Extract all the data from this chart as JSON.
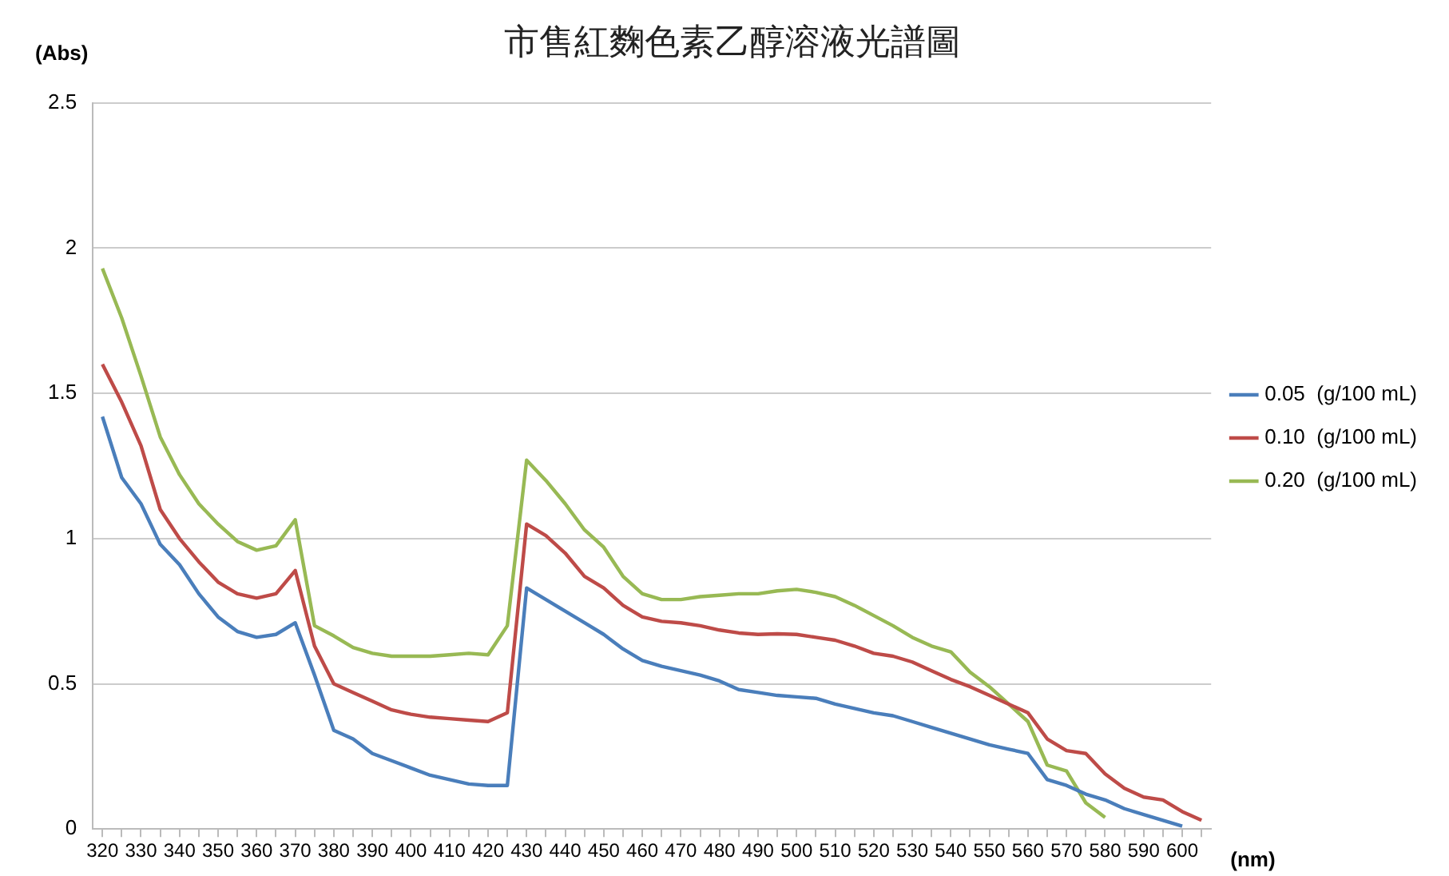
{
  "chart_data": {
    "type": "line",
    "title": "市售紅麴色素乙醇溶液光譜圖",
    "xlabel": "(nm)",
    "ylabel": "(Abs)",
    "categories": [
      "320",
      null,
      "330",
      null,
      "340",
      null,
      "350",
      null,
      "360",
      null,
      "370",
      null,
      "380",
      null,
      "390",
      null,
      "400",
      null,
      "410",
      null,
      "420",
      null,
      "430",
      null,
      "440",
      null,
      "450",
      null,
      "460",
      null,
      "470",
      null,
      "480",
      null,
      "490",
      null,
      "500",
      null,
      "510",
      null,
      "520",
      null,
      "530",
      null,
      "540",
      null,
      "550",
      null,
      "560",
      null,
      "570",
      null,
      "580",
      null,
      "590",
      null,
      "600",
      null
    ],
    "ylim": [
      0,
      2.5
    ],
    "yticks": [
      0,
      0.5,
      1,
      1.5,
      2,
      2.5
    ],
    "grid": "y",
    "legend": "right",
    "marker": "none",
    "line_style": "solid",
    "series": [
      {
        "name": "0.05  (g/100 mL)",
        "color": "#4a7ebb",
        "values": [
          1.42,
          1.21,
          1.12,
          0.98,
          0.91,
          0.81,
          0.73,
          0.68,
          0.66,
          0.67,
          0.71,
          0.53,
          0.34,
          0.31,
          0.26,
          0.235,
          0.21,
          0.185,
          0.17,
          0.155,
          0.15,
          0.15,
          0.83,
          0.79,
          0.75,
          0.71,
          0.67,
          0.62,
          0.58,
          0.56,
          0.545,
          0.53,
          0.51,
          0.48,
          0.47,
          0.46,
          0.455,
          0.45,
          0.43,
          0.415,
          0.4,
          0.39,
          0.37,
          0.35,
          0.33,
          0.31,
          0.29,
          0.275,
          0.26,
          0.17,
          0.15,
          0.12,
          0.1,
          0.07,
          0.05,
          0.03,
          0.01,
          null
        ]
      },
      {
        "name": "0.10  (g/100 mL)",
        "color": "#be4b48",
        "values": [
          1.6,
          1.47,
          1.32,
          1.1,
          1.0,
          0.92,
          0.85,
          0.81,
          0.795,
          0.81,
          0.89,
          0.63,
          0.5,
          0.47,
          0.44,
          0.41,
          0.395,
          0.385,
          0.38,
          0.375,
          0.37,
          0.4,
          1.05,
          1.01,
          0.95,
          0.87,
          0.83,
          0.77,
          0.73,
          0.715,
          0.71,
          0.7,
          0.685,
          0.675,
          0.67,
          0.672,
          0.67,
          0.66,
          0.65,
          0.63,
          0.605,
          0.595,
          0.575,
          0.545,
          0.515,
          0.49,
          0.46,
          0.43,
          0.4,
          0.31,
          0.27,
          0.26,
          0.19,
          0.14,
          0.11,
          0.1,
          0.06,
          0.03
        ]
      },
      {
        "name": "0.20  (g/100 mL)",
        "color": "#98b954",
        "values": [
          1.93,
          1.76,
          1.56,
          1.35,
          1.22,
          1.12,
          1.05,
          0.99,
          0.96,
          0.975,
          1.065,
          0.7,
          0.665,
          0.625,
          0.605,
          0.595,
          0.595,
          0.595,
          0.6,
          0.605,
          0.6,
          0.7,
          1.27,
          1.2,
          1.12,
          1.03,
          0.97,
          0.87,
          0.81,
          0.79,
          0.79,
          0.8,
          0.805,
          0.81,
          0.81,
          0.82,
          0.825,
          0.815,
          0.8,
          0.77,
          0.735,
          0.7,
          0.66,
          0.63,
          0.61,
          0.54,
          0.49,
          0.43,
          0.37,
          0.22,
          0.2,
          0.09,
          0.04,
          null,
          null,
          null,
          null,
          null
        ]
      }
    ]
  }
}
